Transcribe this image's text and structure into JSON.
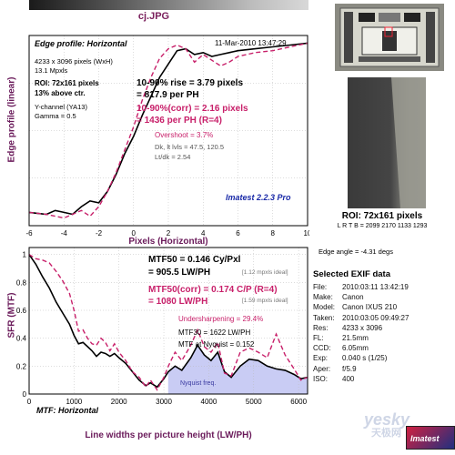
{
  "file_title": "cj.JPG",
  "edge_profile": {
    "header": "Edge profile: Horizontal",
    "date": "11-Mar-2010 13:47:29",
    "ylabel": "Edge profile (linear)",
    "xlabel": "Pixels (Horizontal)",
    "info": [
      "4233 x 3096 pixels (WxH)",
      "13.1 Mpxls"
    ],
    "roi": [
      "ROI: 72x161 pixels",
      "13% above ctr."
    ],
    "channel": [
      "Y-channel  (YA13)",
      "Gamma = 0.5"
    ],
    "rise": [
      "10-90% rise = 3.79 pixels",
      "= 817.9 per PH"
    ],
    "rise_corr": [
      "10-90%(corr) = 2.16 pixels",
      "= 1436 per PH  (R=4)"
    ],
    "overshoot": "Overshoot = 3.7%",
    "levels": [
      "Dk, lt lvls = 47.5, 120.5",
      "Lt/dk = 2.54"
    ],
    "brand": "Imatest 2.2.3 Pro"
  },
  "mtf": {
    "ylabel": "SFR (MTF)",
    "xlabel": "Line widths per picture height (LW/PH)",
    "footer": "MTF: Horizontal",
    "mtf50": [
      "MTF50 = 0.146 Cy/Pxl",
      "= 905.5 LW/PH"
    ],
    "mtf50_ideal": "[1.12 mpxls ideal]",
    "mtf50_corr": [
      "MTF50(corr) = 0.174 C/P  (R=4)",
      "= 1080 LW/PH"
    ],
    "mtf50_corr_ideal": "[1.59 mpxls ideal]",
    "undersharpening": "Undersharpening = 29.4%",
    "mtf30": "MTF30 = 1622 LW/PH",
    "mtf_nyquist": "MTF at Nyquist = 0.152",
    "nyquist_label": "Nyquist freq."
  },
  "roi_side": {
    "title": "ROI: 72x161 pixels",
    "lrtb": "L R T B = 2099 2170 1133 1293",
    "edge_angle": "Edge angle = -4.31 degs"
  },
  "exif": {
    "title": "Selected EXIF data",
    "rows": [
      {
        "key": "File:",
        "value": "2010:03:11 13:42:19"
      },
      {
        "key": "Make:",
        "value": "Canon"
      },
      {
        "key": "Model:",
        "value": "Canon IXUS 210"
      },
      {
        "key": "Taken:",
        "value": "2010:03:05 09:49:27"
      },
      {
        "key": "Res:",
        "value": "4233 x 3096"
      },
      {
        "key": "FL:",
        "value": "21.5mm"
      },
      {
        "key": "CCD:",
        "value": "6.05mm"
      },
      {
        "key": "Exp:",
        "value": "0.040 s  (1/25)"
      },
      {
        "key": "Aper:",
        "value": "f/5.9"
      },
      {
        "key": "ISO:",
        "value": "400"
      }
    ]
  },
  "logos": {
    "yesky": "yesky",
    "yesky_cn": "天极网",
    "imatest": "Imatest"
  },
  "colors": {
    "black_curve": "#000000",
    "corr_curve": "#c8206a",
    "nyquist_fill": "#c9ccf4",
    "title": "#7a1f5c",
    "label": "#6a1a5a"
  },
  "chart_data": [
    {
      "type": "line",
      "title": "Edge profile: Horizontal",
      "xlabel": "Pixels (Horizontal)",
      "ylabel": "Edge profile (linear)",
      "xlim": [
        -6,
        10
      ],
      "ylim": [
        0,
        1
      ],
      "xticks": [
        -6,
        -4,
        -2,
        0,
        2,
        4,
        6,
        8,
        10
      ],
      "grid": true,
      "series": [
        {
          "values": [
            [
              -6,
              0.07
            ],
            [
              -5,
              0.06
            ],
            [
              -4.5,
              0.08
            ],
            [
              -4,
              0.07
            ],
            [
              -3.5,
              0.06
            ],
            [
              -3,
              0.1
            ],
            [
              -2.5,
              0.13
            ],
            [
              -2,
              0.12
            ],
            [
              -1.5,
              0.18
            ],
            [
              -1,
              0.27
            ],
            [
              -0.5,
              0.38
            ],
            [
              0,
              0.47
            ],
            [
              0.5,
              0.58
            ],
            [
              1,
              0.68
            ],
            [
              1.5,
              0.78
            ],
            [
              2,
              0.85
            ],
            [
              2.5,
              0.92
            ],
            [
              3,
              0.93
            ],
            [
              3.5,
              0.9
            ],
            [
              4,
              0.91
            ],
            [
              4.5,
              0.89
            ],
            [
              5,
              0.9
            ],
            [
              5.5,
              0.91
            ],
            [
              6,
              0.92
            ],
            [
              7,
              0.93
            ],
            [
              8,
              0.94
            ],
            [
              9,
              0.95
            ],
            [
              10,
              0.96
            ]
          ]
        },
        {
          "values": [
            [
              -6,
              0.07
            ],
            [
              -5,
              0.06
            ],
            [
              -4.5,
              0.05
            ],
            [
              -4,
              0.04
            ],
            [
              -3.5,
              0.06
            ],
            [
              -3,
              0.08
            ],
            [
              -2.5,
              0.05
            ],
            [
              -2,
              0.1
            ],
            [
              -1.5,
              0.18
            ],
            [
              -1,
              0.28
            ],
            [
              -0.5,
              0.4
            ],
            [
              0,
              0.52
            ],
            [
              0.5,
              0.66
            ],
            [
              1,
              0.78
            ],
            [
              1.5,
              0.88
            ],
            [
              2,
              0.93
            ],
            [
              2.5,
              0.95
            ],
            [
              3,
              0.93
            ],
            [
              3.5,
              0.86
            ],
            [
              4,
              0.9
            ],
            [
              4.5,
              0.87
            ],
            [
              5,
              0.84
            ],
            [
              5.5,
              0.86
            ],
            [
              6,
              0.89
            ],
            [
              7,
              0.91
            ],
            [
              8,
              0.92
            ],
            [
              9,
              0.94
            ],
            [
              10,
              0.96
            ]
          ]
        }
      ]
    },
    {
      "type": "line",
      "title": "MTF: Horizontal",
      "xlabel": "Line widths per picture height (LW/PH)",
      "ylabel": "SFR (MTF)",
      "xlim": [
        0,
        6200
      ],
      "ylim": [
        0,
        1.05
      ],
      "xticks": [
        0,
        1000,
        2000,
        3000,
        4000,
        5000,
        6000
      ],
      "yticks": [
        0,
        0.2,
        0.4,
        0.6,
        0.8,
        1
      ],
      "nyquist_start": 3096,
      "grid": true,
      "series": [
        {
          "values": [
            [
              0,
              1
            ],
            [
              150,
              0.93
            ],
            [
              300,
              0.84
            ],
            [
              450,
              0.76
            ],
            [
              600,
              0.66
            ],
            [
              750,
              0.58
            ],
            [
              900,
              0.5
            ],
            [
              1000,
              0.42
            ],
            [
              1100,
              0.36
            ],
            [
              1200,
              0.37
            ],
            [
              1300,
              0.34
            ],
            [
              1400,
              0.31
            ],
            [
              1500,
              0.27
            ],
            [
              1600,
              0.3
            ],
            [
              1700,
              0.29
            ],
            [
              1800,
              0.27
            ],
            [
              1900,
              0.29
            ],
            [
              2000,
              0.26
            ],
            [
              2150,
              0.22
            ],
            [
              2300,
              0.16
            ],
            [
              2450,
              0.1
            ],
            [
              2600,
              0.06
            ],
            [
              2700,
              0.08
            ],
            [
              2850,
              0.05
            ],
            [
              3000,
              0.11
            ],
            [
              3100,
              0.16
            ],
            [
              3250,
              0.2
            ],
            [
              3400,
              0.17
            ],
            [
              3600,
              0.26
            ],
            [
              3750,
              0.35
            ],
            [
              3900,
              0.28
            ],
            [
              4050,
              0.24
            ],
            [
              4200,
              0.3
            ],
            [
              4350,
              0.16
            ],
            [
              4500,
              0.12
            ],
            [
              4700,
              0.2
            ],
            [
              4900,
              0.25
            ],
            [
              5100,
              0.24
            ],
            [
              5300,
              0.2
            ],
            [
              5500,
              0.18
            ],
            [
              5700,
              0.17
            ],
            [
              5900,
              0.14
            ],
            [
              6050,
              0.11
            ],
            [
              6200,
              0.12
            ]
          ]
        },
        {
          "values": [
            [
              0,
              1
            ],
            [
              150,
              0.97
            ],
            [
              300,
              0.96
            ],
            [
              450,
              0.94
            ],
            [
              600,
              0.88
            ],
            [
              750,
              0.81
            ],
            [
              900,
              0.72
            ],
            [
              1000,
              0.6
            ],
            [
              1100,
              0.45
            ],
            [
              1200,
              0.46
            ],
            [
              1300,
              0.4
            ],
            [
              1400,
              0.36
            ],
            [
              1500,
              0.35
            ],
            [
              1600,
              0.4
            ],
            [
              1700,
              0.37
            ],
            [
              1800,
              0.31
            ],
            [
              1900,
              0.36
            ],
            [
              2000,
              0.3
            ],
            [
              2150,
              0.24
            ],
            [
              2300,
              0.16
            ],
            [
              2450,
              0.12
            ],
            [
              2600,
              0.05
            ],
            [
              2700,
              0.1
            ],
            [
              2850,
              0.03
            ],
            [
              3000,
              0.12
            ],
            [
              3100,
              0.2
            ],
            [
              3250,
              0.3
            ],
            [
              3400,
              0.24
            ],
            [
              3600,
              0.35
            ],
            [
              3750,
              0.46
            ],
            [
              3900,
              0.34
            ],
            [
              4050,
              0.3
            ],
            [
              4200,
              0.37
            ],
            [
              4350,
              0.15
            ],
            [
              4500,
              0.13
            ],
            [
              4700,
              0.3
            ],
            [
              4900,
              0.33
            ],
            [
              5100,
              0.3
            ],
            [
              5300,
              0.26
            ],
            [
              5500,
              0.43
            ],
            [
              5700,
              0.28
            ],
            [
              5900,
              0.18
            ],
            [
              6050,
              0.1
            ],
            [
              6200,
              0.12
            ]
          ]
        }
      ]
    }
  ]
}
